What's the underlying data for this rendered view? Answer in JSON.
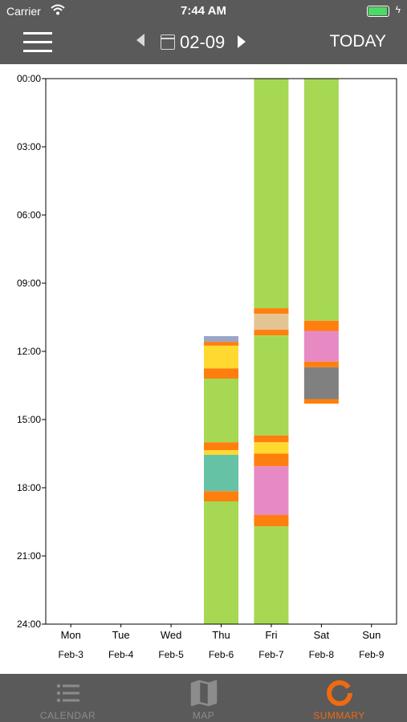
{
  "status": {
    "carrier": "Carrier",
    "time": "7:44 AM",
    "battery_level": 1.0
  },
  "nav": {
    "date": "02-09",
    "today_label": "TODAY"
  },
  "chart_data": {
    "type": "bar",
    "ylim": [
      "00:00",
      "24:00"
    ],
    "yticks": [
      "00:00",
      "03:00",
      "06:00",
      "09:00",
      "12:00",
      "15:00",
      "18:00",
      "21:00",
      "24:00"
    ],
    "days": [
      {
        "day": "Mon",
        "date": "Feb-3",
        "segments": []
      },
      {
        "day": "Tue",
        "date": "Feb-4",
        "segments": []
      },
      {
        "day": "Wed",
        "date": "Feb-5",
        "segments": []
      },
      {
        "day": "Thu",
        "date": "Feb-6",
        "segments": [
          {
            "start": 11.33,
            "end": 11.58,
            "color": "#9aa5c8"
          },
          {
            "start": 11.58,
            "end": 11.75,
            "color": "#ff7f0e"
          },
          {
            "start": 11.75,
            "end": 12.75,
            "color": "#ffd92f"
          },
          {
            "start": 12.75,
            "end": 13.2,
            "color": "#ff7f0e"
          },
          {
            "start": 13.2,
            "end": 16.0,
            "color": "#a6d854"
          },
          {
            "start": 16.0,
            "end": 16.35,
            "color": "#ff7f0e"
          },
          {
            "start": 16.35,
            "end": 16.55,
            "color": "#ffd92f"
          },
          {
            "start": 16.55,
            "end": 18.15,
            "color": "#66c2a5"
          },
          {
            "start": 18.15,
            "end": 18.6,
            "color": "#ff7f0e"
          },
          {
            "start": 18.6,
            "end": 24.0,
            "color": "#a6d854"
          }
        ]
      },
      {
        "day": "Fri",
        "date": "Feb-7",
        "segments": [
          {
            "start": 0.0,
            "end": 10.1,
            "color": "#a6d854"
          },
          {
            "start": 10.1,
            "end": 10.35,
            "color": "#ff7f0e"
          },
          {
            "start": 10.35,
            "end": 11.05,
            "color": "#e5c494"
          },
          {
            "start": 11.05,
            "end": 11.3,
            "color": "#ff7f0e"
          },
          {
            "start": 11.3,
            "end": 15.7,
            "color": "#a6d854"
          },
          {
            "start": 15.7,
            "end": 16.0,
            "color": "#ff7f0e"
          },
          {
            "start": 16.0,
            "end": 16.5,
            "color": "#ffd92f"
          },
          {
            "start": 16.5,
            "end": 17.05,
            "color": "#ff7f0e"
          },
          {
            "start": 17.05,
            "end": 19.2,
            "color": "#e78ac3"
          },
          {
            "start": 19.2,
            "end": 19.7,
            "color": "#ff7f0e"
          },
          {
            "start": 19.7,
            "end": 24.0,
            "color": "#a6d854"
          }
        ]
      },
      {
        "day": "Sat",
        "date": "Feb-8",
        "segments": [
          {
            "start": 0.0,
            "end": 10.65,
            "color": "#a6d854"
          },
          {
            "start": 10.65,
            "end": 11.1,
            "color": "#ff7f0e"
          },
          {
            "start": 11.1,
            "end": 12.45,
            "color": "#e78ac3"
          },
          {
            "start": 12.45,
            "end": 12.7,
            "color": "#ff7f0e"
          },
          {
            "start": 12.7,
            "end": 14.1,
            "color": "#808080"
          },
          {
            "start": 14.1,
            "end": 14.3,
            "color": "#ff7f0e"
          }
        ]
      },
      {
        "day": "Sun",
        "date": "Feb-9",
        "segments": []
      }
    ]
  },
  "tabs": [
    {
      "label": "CALENDAR",
      "icon": "list-icon",
      "active": false
    },
    {
      "label": "MAP",
      "icon": "map-icon",
      "active": false
    },
    {
      "label": "SUMMARY",
      "icon": "ring-icon",
      "active": true
    }
  ],
  "colors": {
    "bar_gray": "#5a5a5a",
    "accent": "#f06a10"
  }
}
